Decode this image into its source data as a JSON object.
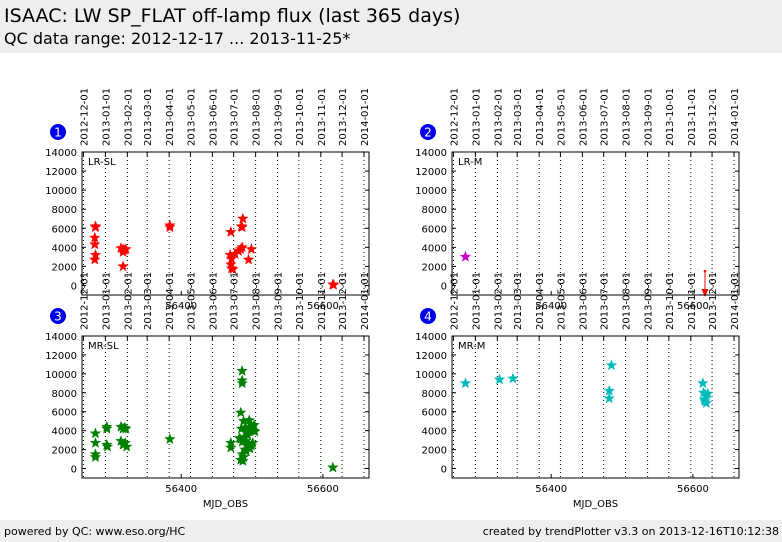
{
  "header": {
    "title": "ISAAC: LW SP_FLAT off-lamp flux (last 365 days)",
    "subtitle": "QC data range: 2012-12-17 ... 2013-11-25*"
  },
  "footer": {
    "left": "powered by QC: www.eso.org/HC",
    "right": "created by trendPlotter v3.3 on 2013-12-16T10:12:38"
  },
  "colors": {
    "header_bg": "#eeeeee",
    "badge": "#0000ee",
    "red": "#ff0000",
    "magenta": "#cc00cc",
    "green": "#008000",
    "cyan": "#00bbbb"
  },
  "chart_data": [
    {
      "type": "scatter",
      "panel": "1",
      "label": "LR-SL",
      "xlabel": "",
      "ylabel": "",
      "xlim": [
        56260,
        56665
      ],
      "ylim": [
        -1000,
        14000
      ],
      "x_ticks": [
        56400,
        56600
      ],
      "y_ticks": [
        0,
        2000,
        4000,
        6000,
        8000,
        10000,
        12000,
        14000
      ],
      "date_ticks": [
        {
          "label": "2012-12-01",
          "mjd": 56262
        },
        {
          "label": "2013-01-01",
          "mjd": 56293
        },
        {
          "label": "2013-02-01",
          "mjd": 56324
        },
        {
          "label": "2013-03-01",
          "mjd": 56352
        },
        {
          "label": "2013-04-01",
          "mjd": 56383
        },
        {
          "label": "2013-05-01",
          "mjd": 56413
        },
        {
          "label": "2013-06-01",
          "mjd": 56444
        },
        {
          "label": "2013-07-01",
          "mjd": 56474
        },
        {
          "label": "2013-08-01",
          "mjd": 56505
        },
        {
          "label": "2013-09-01",
          "mjd": 56536
        },
        {
          "label": "2013-10-01",
          "mjd": 56566
        },
        {
          "label": "2013-11-01",
          "mjd": 56597
        },
        {
          "label": "2013-12-01",
          "mjd": 56627
        },
        {
          "label": "2014-01-01",
          "mjd": 56658
        }
      ],
      "color": "#ff0000",
      "points": [
        [
          56279,
          6200
        ],
        [
          56279,
          6100
        ],
        [
          56278,
          5000
        ],
        [
          56278,
          4300
        ],
        [
          56279,
          3200
        ],
        [
          56278,
          2700
        ],
        [
          56315,
          3900
        ],
        [
          56318,
          3800
        ],
        [
          56320,
          3700
        ],
        [
          56322,
          3800
        ],
        [
          56318,
          3500
        ],
        [
          56318,
          2000
        ],
        [
          56384,
          6300
        ],
        [
          56384,
          6100
        ],
        [
          56470,
          5600
        ],
        [
          56469,
          3200
        ],
        [
          56471,
          2800
        ],
        [
          56470,
          2200
        ],
        [
          56471,
          1800
        ],
        [
          56473,
          1700
        ],
        [
          56476,
          3300
        ],
        [
          56481,
          3600
        ],
        [
          56484,
          3800
        ],
        [
          56486,
          4000
        ],
        [
          56485,
          6200
        ],
        [
          56486,
          6100
        ],
        [
          56487,
          7000
        ],
        [
          56495,
          2700
        ],
        [
          56499,
          3800
        ],
        [
          56614,
          100
        ],
        [
          56615,
          50
        ]
      ],
      "arrows": []
    },
    {
      "type": "scatter",
      "panel": "2",
      "label": "LR-M",
      "xlabel": "",
      "ylabel": "",
      "xlim": [
        56260,
        56665
      ],
      "ylim": [
        -1000,
        14000
      ],
      "x_ticks": [
        56400,
        56600
      ],
      "y_ticks": [
        0,
        2000,
        4000,
        6000,
        8000,
        10000,
        12000,
        14000
      ],
      "date_ticks": [
        {
          "label": "2012-12-01",
          "mjd": 56262
        },
        {
          "label": "2013-01-01",
          "mjd": 56293
        },
        {
          "label": "2013-02-01",
          "mjd": 56324
        },
        {
          "label": "2013-03-01",
          "mjd": 56352
        },
        {
          "label": "2013-04-01",
          "mjd": 56383
        },
        {
          "label": "2013-05-01",
          "mjd": 56413
        },
        {
          "label": "2013-06-01",
          "mjd": 56444
        },
        {
          "label": "2013-07-01",
          "mjd": 56474
        },
        {
          "label": "2013-08-01",
          "mjd": 56505
        },
        {
          "label": "2013-09-01",
          "mjd": 56536
        },
        {
          "label": "2013-10-01",
          "mjd": 56566
        },
        {
          "label": "2013-11-01",
          "mjd": 56597
        },
        {
          "label": "2013-12-01",
          "mjd": 56627
        },
        {
          "label": "2014-01-01",
          "mjd": 56658
        }
      ],
      "color": "#cc00cc",
      "points": [
        [
          56279,
          3000
        ]
      ],
      "arrows": [
        {
          "x": 56617,
          "y_from": 1500,
          "y_to": -1000,
          "color": "#ff0000"
        }
      ]
    },
    {
      "type": "scatter",
      "panel": "3",
      "label": "MR-SL",
      "xlabel": "MJD_OBS",
      "ylabel": "",
      "xlim": [
        56260,
        56665
      ],
      "ylim": [
        -1000,
        14000
      ],
      "x_ticks": [
        56400,
        56600
      ],
      "y_ticks": [
        0,
        2000,
        4000,
        6000,
        8000,
        10000,
        12000,
        14000
      ],
      "date_ticks": [
        {
          "label": "2012-12-01",
          "mjd": 56262
        },
        {
          "label": "2013-01-01",
          "mjd": 56293
        },
        {
          "label": "2013-02-01",
          "mjd": 56324
        },
        {
          "label": "2013-03-01",
          "mjd": 56352
        },
        {
          "label": "2013-04-01",
          "mjd": 56383
        },
        {
          "label": "2013-05-01",
          "mjd": 56413
        },
        {
          "label": "2013-06-01",
          "mjd": 56444
        },
        {
          "label": "2013-07-01",
          "mjd": 56474
        },
        {
          "label": "2013-08-01",
          "mjd": 56505
        },
        {
          "label": "2013-09-01",
          "mjd": 56536
        },
        {
          "label": "2013-10-01",
          "mjd": 56566
        },
        {
          "label": "2013-11-01",
          "mjd": 56597
        },
        {
          "label": "2013-12-01",
          "mjd": 56627
        },
        {
          "label": "2014-01-01",
          "mjd": 56658
        }
      ],
      "color": "#008000",
      "points": [
        [
          56279,
          3700
        ],
        [
          56279,
          2700
        ],
        [
          56279,
          1500
        ],
        [
          56279,
          1200
        ],
        [
          56295,
          4400
        ],
        [
          56295,
          4200
        ],
        [
          56295,
          2500
        ],
        [
          56296,
          2300
        ],
        [
          56315,
          4400
        ],
        [
          56318,
          4200
        ],
        [
          56320,
          4300
        ],
        [
          56322,
          4200
        ],
        [
          56315,
          2900
        ],
        [
          56318,
          2500
        ],
        [
          56321,
          2700
        ],
        [
          56323,
          2300
        ],
        [
          56384,
          3100
        ],
        [
          56486,
          10300
        ],
        [
          56486,
          9300
        ],
        [
          56486,
          9000
        ],
        [
          56484,
          5900
        ],
        [
          56470,
          2700
        ],
        [
          56470,
          2200
        ],
        [
          56482,
          3200
        ],
        [
          56484,
          3100
        ],
        [
          56486,
          2800
        ],
        [
          56488,
          5000
        ],
        [
          56490,
          4300
        ],
        [
          56492,
          3800
        ],
        [
          56494,
          3500
        ],
        [
          56496,
          5100
        ],
        [
          56498,
          4700
        ],
        [
          56500,
          4400
        ],
        [
          56502,
          4000
        ],
        [
          56489,
          3300
        ],
        [
          56491,
          2900
        ],
        [
          56493,
          2600
        ],
        [
          56495,
          2300
        ],
        [
          56497,
          2100
        ],
        [
          56499,
          2400
        ],
        [
          56501,
          2700
        ],
        [
          56503,
          4600
        ],
        [
          56504,
          3900
        ],
        [
          56486,
          1500
        ],
        [
          56488,
          1200
        ],
        [
          56484,
          900
        ],
        [
          56487,
          800
        ],
        [
          56490,
          2000
        ],
        [
          56492,
          1800
        ],
        [
          56485,
          4200
        ],
        [
          56495,
          4000
        ],
        [
          56614,
          100
        ]
      ],
      "arrows": []
    },
    {
      "type": "scatter",
      "panel": "4",
      "label": "MR-M",
      "xlabel": "MJD_OBS",
      "ylabel": "",
      "xlim": [
        56260,
        56665
      ],
      "ylim": [
        -1000,
        14000
      ],
      "x_ticks": [
        56400,
        56600
      ],
      "y_ticks": [
        0,
        2000,
        4000,
        6000,
        8000,
        10000,
        12000,
        14000
      ],
      "date_ticks": [
        {
          "label": "2012-12-01",
          "mjd": 56262
        },
        {
          "label": "2013-01-01",
          "mjd": 56293
        },
        {
          "label": "2013-02-01",
          "mjd": 56324
        },
        {
          "label": "2013-03-01",
          "mjd": 56352
        },
        {
          "label": "2013-04-01",
          "mjd": 56383
        },
        {
          "label": "2013-05-01",
          "mjd": 56413
        },
        {
          "label": "2013-06-01",
          "mjd": 56444
        },
        {
          "label": "2013-07-01",
          "mjd": 56474
        },
        {
          "label": "2013-08-01",
          "mjd": 56505
        },
        {
          "label": "2013-09-01",
          "mjd": 56536
        },
        {
          "label": "2013-10-01",
          "mjd": 56566
        },
        {
          "label": "2013-11-01",
          "mjd": 56597
        },
        {
          "label": "2013-12-01",
          "mjd": 56627
        },
        {
          "label": "2014-01-01",
          "mjd": 56658
        }
      ],
      "color": "#00bbbb",
      "points": [
        [
          56279,
          9000
        ],
        [
          56327,
          9400
        ],
        [
          56346,
          9500
        ],
        [
          56485,
          10900
        ],
        [
          56482,
          8200
        ],
        [
          56482,
          7400
        ],
        [
          56614,
          9000
        ],
        [
          56615,
          8000
        ],
        [
          56618,
          7800
        ],
        [
          56621,
          7900
        ],
        [
          56616,
          7300
        ],
        [
          56617,
          7100
        ],
        [
          56619,
          6900
        ]
      ],
      "arrows": []
    }
  ]
}
